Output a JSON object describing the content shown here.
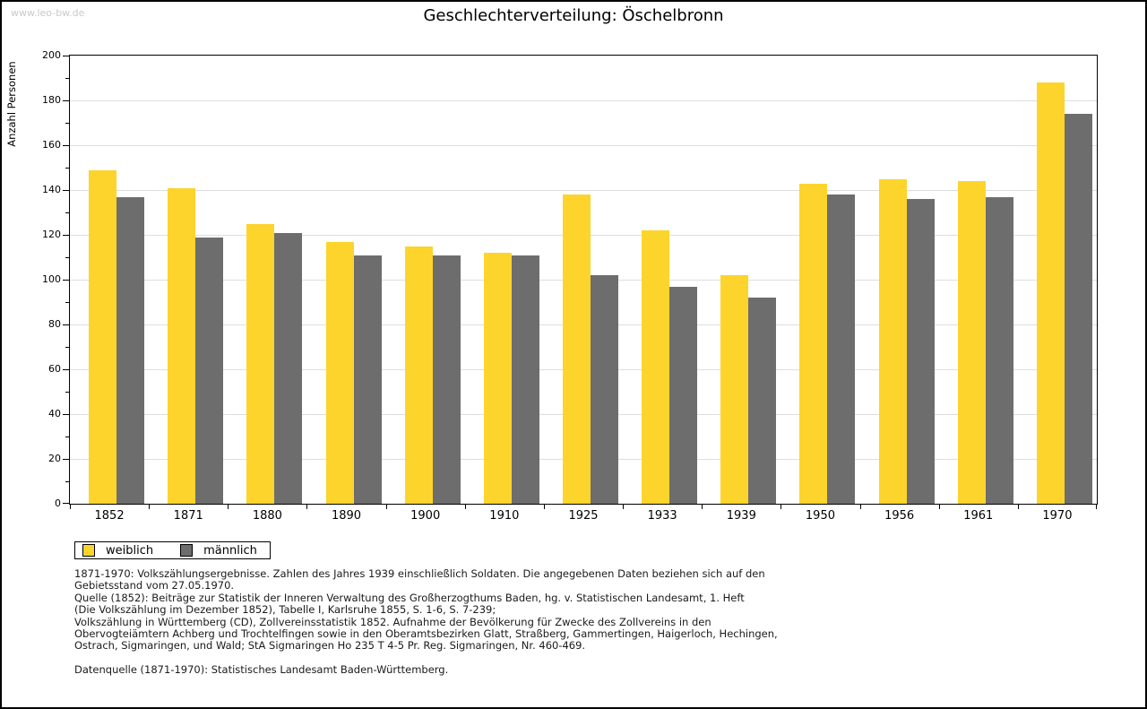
{
  "watermark": "www.leo-bw.de",
  "title": "Geschlechterverteilung: Öschelbronn",
  "chart_data": {
    "type": "bar",
    "title": "Geschlechterverteilung: Öschelbronn",
    "xlabel": "",
    "ylabel": "Anzahl Personen",
    "ylim": [
      0,
      200
    ],
    "ytick_step": 20,
    "minor_tick_step": 10,
    "grid": "horizontal",
    "legend_position": "bottom-left",
    "categories": [
      "1852",
      "1871",
      "1880",
      "1890",
      "1900",
      "1910",
      "1925",
      "1933",
      "1939",
      "1950",
      "1956",
      "1961",
      "1970"
    ],
    "series": [
      {
        "name": "weiblich",
        "id": "weiblich",
        "color": "#FDD42C",
        "values": [
          149,
          141,
          125,
          117,
          115,
          112,
          138,
          122,
          102,
          143,
          145,
          144,
          188
        ]
      },
      {
        "name": "männlich",
        "id": "maennlich",
        "color": "#6D6D6D",
        "values": [
          137,
          119,
          121,
          111,
          111,
          111,
          102,
          97,
          92,
          138,
          136,
          137,
          174
        ]
      }
    ]
  },
  "legend": {
    "items": [
      "weiblich",
      "männlich"
    ]
  },
  "footer": {
    "lines": [
      "1871-1970: Volkszählungsergebnisse. Zahlen des Jahres 1939 einschließlich Soldaten. Die angegebenen Daten beziehen sich auf den",
      "Gebietsstand vom 27.05.1970.",
      "Quelle (1852): Beiträge zur Statistik der Inneren Verwaltung des Großherzogthums Baden, hg. v. Statistischen Landesamt, 1. Heft",
      "(Die Volkszählung im Dezember 1852), Tabelle I, Karlsruhe 1855, S. 1-6, S. 7-239;",
      "Volkszählung in Württemberg (CD), Zollvereinsstatistik 1852. Aufnahme der Bevölkerung für Zwecke des Zollvereins in den",
      "Obervogteiämtern Achberg und Trochtelfingen sowie in den Oberamtsbezirken Glatt, Straßberg, Gammertingen, Haigerloch, Hechingen,",
      "Ostrach, Sigmaringen, und Wald; StA Sigmaringen Ho 235 T 4-5 Pr. Reg. Sigmaringen, Nr. 460-469."
    ],
    "datasource": "Datenquelle (1871-1970): Statistisches Landesamt Baden-Württemberg."
  }
}
